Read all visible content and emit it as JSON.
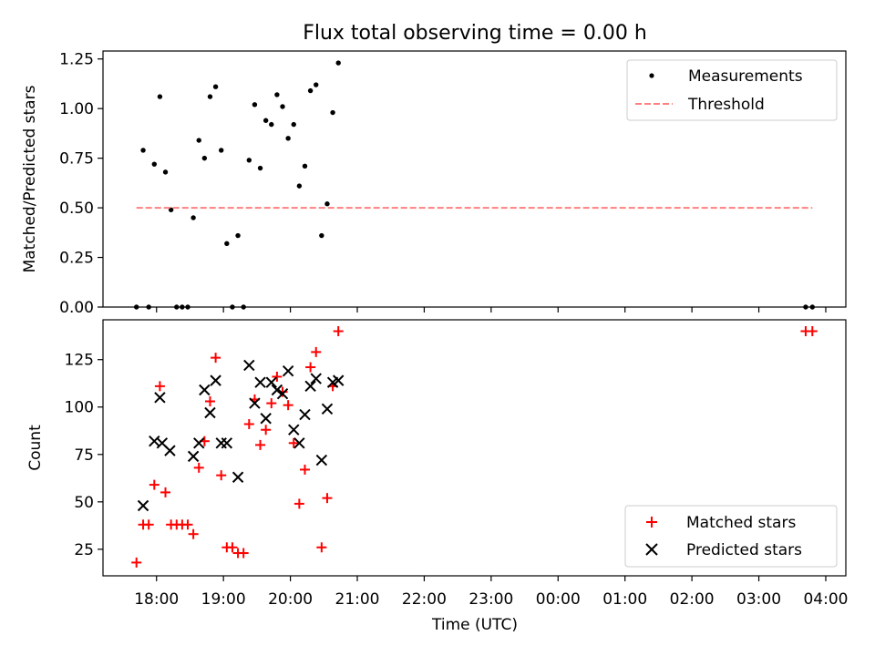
{
  "title": "Flux total observing time = 0.00 h",
  "xlabel": "Time (UTC)",
  "chart_data": [
    {
      "type": "scatter",
      "ylabel": "Matched/Predicted stars",
      "ylim": [
        0,
        1.29
      ],
      "yticks": [
        0,
        0.25,
        0.5,
        0.75,
        1.0,
        1.25
      ],
      "ytick_labels": [
        "0.00",
        "0.25",
        "0.50",
        "0.75",
        "1.00",
        "1.25"
      ],
      "legend_position": "top-right",
      "series": [
        {
          "name": "Measurements",
          "marker": "dot",
          "color": "#000000",
          "points": [
            [
              "17:42",
              0.0
            ],
            [
              "17:48",
              0.79
            ],
            [
              "17:53",
              0.0
            ],
            [
              "17:58",
              0.72
            ],
            [
              "18:03",
              1.06
            ],
            [
              "18:08",
              0.68
            ],
            [
              "18:13",
              0.49
            ],
            [
              "18:18",
              0.0
            ],
            [
              "18:23",
              0.0
            ],
            [
              "18:28",
              0.0
            ],
            [
              "18:33",
              0.45
            ],
            [
              "18:38",
              0.84
            ],
            [
              "18:43",
              0.75
            ],
            [
              "18:48",
              1.06
            ],
            [
              "18:53",
              1.11
            ],
            [
              "18:58",
              0.79
            ],
            [
              "19:03",
              0.32
            ],
            [
              "19:08",
              0.0
            ],
            [
              "19:13",
              0.36
            ],
            [
              "19:18",
              0.0
            ],
            [
              "19:23",
              0.74
            ],
            [
              "19:28",
              1.02
            ],
            [
              "19:33",
              0.7
            ],
            [
              "19:38",
              0.94
            ],
            [
              "19:43",
              0.92
            ],
            [
              "19:48",
              1.07
            ],
            [
              "19:53",
              1.01
            ],
            [
              "19:58",
              0.85
            ],
            [
              "20:03",
              0.92
            ],
            [
              "20:08",
              0.61
            ],
            [
              "20:13",
              0.71
            ],
            [
              "20:18",
              1.09
            ],
            [
              "20:23",
              1.12
            ],
            [
              "20:28",
              0.36
            ],
            [
              "20:33",
              0.52
            ],
            [
              "20:38",
              0.98
            ],
            [
              "20:43",
              1.23
            ],
            [
              "03:42",
              0.0
            ],
            [
              "03:48",
              0.0
            ]
          ]
        },
        {
          "name": "Threshold",
          "style": "dashed",
          "color": "#ff8080",
          "points": [
            [
              "17:42",
              0.5
            ],
            [
              "03:48",
              0.5
            ]
          ]
        }
      ]
    },
    {
      "type": "scatter",
      "ylabel": "Count",
      "ylim": [
        11,
        146
      ],
      "yticks": [
        25,
        50,
        75,
        100,
        125
      ],
      "ytick_labels": [
        "25",
        "50",
        "75",
        "100",
        "125"
      ],
      "legend_position": "bottom-right",
      "series": [
        {
          "name": "Matched stars",
          "marker": "plus",
          "color": "#ff0000",
          "points": [
            [
              "17:42",
              18
            ],
            [
              "17:48",
              38
            ],
            [
              "17:53",
              38
            ],
            [
              "17:58",
              59
            ],
            [
              "18:03",
              111
            ],
            [
              "18:08",
              55
            ],
            [
              "18:13",
              38
            ],
            [
              "18:18",
              38
            ],
            [
              "18:23",
              38
            ],
            [
              "18:28",
              38
            ],
            [
              "18:33",
              33
            ],
            [
              "18:38",
              68
            ],
            [
              "18:43",
              82
            ],
            [
              "18:48",
              103
            ],
            [
              "18:53",
              126
            ],
            [
              "18:58",
              64
            ],
            [
              "19:03",
              26
            ],
            [
              "19:08",
              26
            ],
            [
              "19:13",
              23
            ],
            [
              "19:18",
              23
            ],
            [
              "19:23",
              91
            ],
            [
              "19:28",
              104
            ],
            [
              "19:33",
              80
            ],
            [
              "19:38",
              88
            ],
            [
              "19:43",
              102
            ],
            [
              "19:48",
              116
            ],
            [
              "19:53",
              108
            ],
            [
              "19:58",
              101
            ],
            [
              "20:03",
              81
            ],
            [
              "20:08",
              49
            ],
            [
              "20:13",
              67
            ],
            [
              "20:18",
              121
            ],
            [
              "20:23",
              129
            ],
            [
              "20:28",
              26
            ],
            [
              "20:33",
              52
            ],
            [
              "20:38",
              111
            ],
            [
              "20:43",
              140
            ],
            [
              "03:42",
              140
            ],
            [
              "03:48",
              140
            ]
          ]
        },
        {
          "name": "Predicted stars",
          "marker": "x",
          "color": "#000000",
          "points": [
            [
              "17:48",
              48
            ],
            [
              "17:58",
              82
            ],
            [
              "18:03",
              105
            ],
            [
              "18:05",
              81
            ],
            [
              "18:12",
              77
            ],
            [
              "18:33",
              74
            ],
            [
              "18:38",
              81
            ],
            [
              "18:43",
              109
            ],
            [
              "18:48",
              97
            ],
            [
              "18:53",
              114
            ],
            [
              "18:58",
              81
            ],
            [
              "19:03",
              81
            ],
            [
              "19:13",
              63
            ],
            [
              "19:23",
              122
            ],
            [
              "19:28",
              102
            ],
            [
              "19:33",
              113
            ],
            [
              "19:38",
              94
            ],
            [
              "19:43",
              113
            ],
            [
              "19:48",
              109
            ],
            [
              "19:53",
              107
            ],
            [
              "19:58",
              119
            ],
            [
              "20:03",
              88
            ],
            [
              "20:08",
              81
            ],
            [
              "20:13",
              96
            ],
            [
              "20:18",
              111
            ],
            [
              "20:23",
              115
            ],
            [
              "20:28",
              72
            ],
            [
              "20:33",
              99
            ],
            [
              "20:38",
              113
            ],
            [
              "20:43",
              114
            ]
          ]
        }
      ]
    }
  ],
  "x_axis": {
    "range": [
      "17:12",
      "04:18"
    ],
    "ticks": [
      "18:00",
      "19:00",
      "20:00",
      "21:00",
      "22:00",
      "23:00",
      "00:00",
      "01:00",
      "02:00",
      "03:00",
      "04:00"
    ]
  }
}
